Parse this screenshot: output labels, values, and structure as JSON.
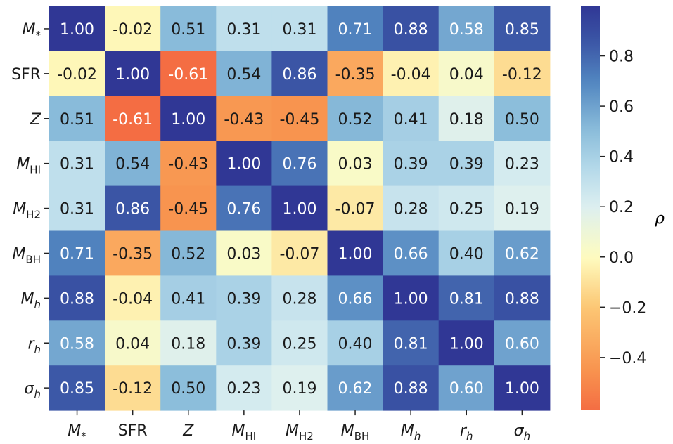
{
  "chart_data": {
    "type": "heatmap",
    "title": "",
    "labels": [
      {
        "base": "M",
        "sub": "*",
        "italic": true
      },
      {
        "base": "SFR",
        "sub": "",
        "italic": false
      },
      {
        "base": "Z",
        "sub": "",
        "italic": true
      },
      {
        "base": "M",
        "sub": "HI",
        "italic": true
      },
      {
        "base": "M",
        "sub": "H2",
        "italic": true
      },
      {
        "base": "M",
        "sub": "BH",
        "italic": true
      },
      {
        "base": "M",
        "sub": "h",
        "italic": true
      },
      {
        "base": "r",
        "sub": "h",
        "italic": true
      },
      {
        "base": "σ",
        "sub": "h",
        "italic": true
      }
    ],
    "values": [
      [
        1.0,
        -0.02,
        0.51,
        0.31,
        0.31,
        0.71,
        0.88,
        0.58,
        0.85
      ],
      [
        -0.02,
        1.0,
        -0.61,
        0.54,
        0.86,
        -0.35,
        -0.04,
        0.04,
        -0.12
      ],
      [
        0.51,
        -0.61,
        1.0,
        -0.43,
        -0.45,
        0.52,
        0.41,
        0.18,
        0.5
      ],
      [
        0.31,
        0.54,
        -0.43,
        1.0,
        0.76,
        0.03,
        0.39,
        0.39,
        0.23
      ],
      [
        0.31,
        0.86,
        -0.45,
        0.76,
        1.0,
        -0.07,
        0.28,
        0.25,
        0.19
      ],
      [
        0.71,
        -0.35,
        0.52,
        0.03,
        -0.07,
        1.0,
        0.66,
        0.4,
        0.62
      ],
      [
        0.88,
        -0.04,
        0.41,
        0.39,
        0.28,
        0.66,
        1.0,
        0.81,
        0.88
      ],
      [
        0.58,
        0.04,
        0.18,
        0.39,
        0.25,
        0.4,
        0.81,
        1.0,
        0.6
      ],
      [
        0.85,
        -0.12,
        0.5,
        0.23,
        0.19,
        0.62,
        0.88,
        0.6,
        1.0
      ]
    ],
    "colorbar": {
      "label": "ρ",
      "range": [
        -0.61,
        1.0
      ],
      "ticks": [
        0.8,
        0.6,
        0.4,
        0.2,
        0.0,
        -0.2,
        -0.4
      ],
      "tick_labels": [
        "0.8",
        "0.6",
        "0.4",
        "0.2",
        "0.0",
        "−0.2",
        "−0.4"
      ]
    },
    "colormap_stops": [
      [
        -0.61,
        "#f46d43"
      ],
      [
        -0.45,
        "#f8944f"
      ],
      [
        -0.2,
        "#fcc774"
      ],
      [
        0.0,
        "#fefcc0"
      ],
      [
        0.2,
        "#dceff0"
      ],
      [
        0.35,
        "#b5d9ea"
      ],
      [
        0.5,
        "#8cbedb"
      ],
      [
        0.7,
        "#5185c0"
      ],
      [
        0.86,
        "#3b55a5"
      ],
      [
        1.0,
        "#303795"
      ]
    ]
  }
}
